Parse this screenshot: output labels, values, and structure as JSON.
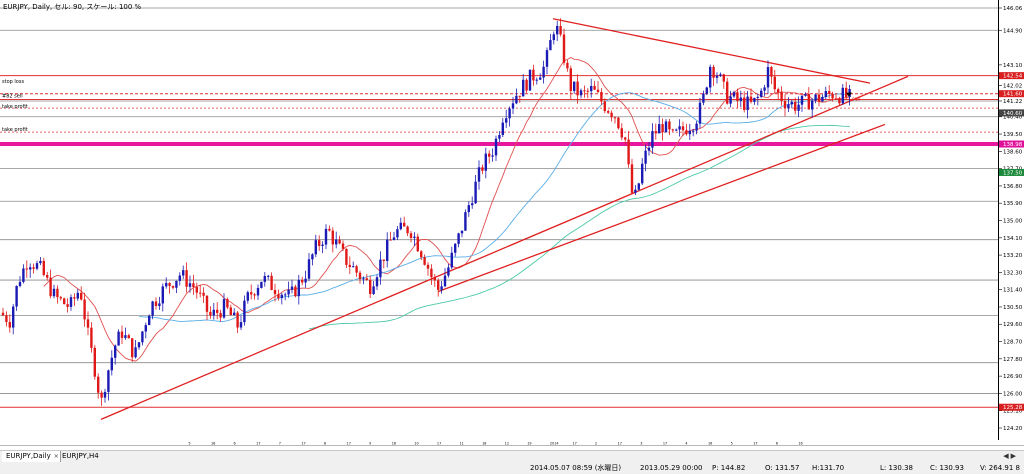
{
  "chart_title": "EURJPY, Daily, セル: 90, スケール: 100 %",
  "tabs": [
    {
      "label": "EURJPY,Daily",
      "close": "×"
    },
    {
      "label": "EURJPY,H4"
    }
  ],
  "nav_icons": [
    "arrow-left-icon",
    "arrow-right-icon"
  ],
  "status": {
    "datetime": "2014.05.07 08:59 (水曜日)",
    "bar_date": "2013.05.29 00:00",
    "p": "P: 144.82",
    "o": "O: 131.57",
    "h": "H:131.70",
    "l": "L: 130.38",
    "c": "C: 130.93",
    "v": "V: 264.91 8"
  },
  "chart_data": {
    "type": "candlestick",
    "symbol": "EURJPY",
    "timeframe": "Daily",
    "y_ticks": [
      "146.06",
      "144.90",
      "143.10",
      "142.02",
      "141.22",
      "140.40",
      "139.50",
      "138.60",
      "137.70",
      "136.80",
      "135.90",
      "135.00",
      "134.10",
      "133.20",
      "132.30",
      "131.40",
      "130.50",
      "129.60",
      "128.70",
      "127.80",
      "126.90",
      "126.00",
      "125.10",
      "124.20"
    ],
    "price_range": [
      124.2,
      146.2
    ],
    "time_ticks": [
      "5",
      "16",
      "6",
      "17",
      "7",
      "17",
      "8",
      "17",
      "9",
      "18",
      "10",
      "17",
      "11",
      "18",
      "12",
      "19",
      "2014",
      "17",
      "2",
      "17",
      "3",
      "17",
      "4",
      "16",
      "5",
      "17",
      "6",
      "16"
    ],
    "labels": [
      {
        "text": "stop loss",
        "price": 142.1
      },
      {
        "text": "#82 sell",
        "price": 141.35
      },
      {
        "text": "take profit",
        "price": 140.8
      },
      {
        "text": "take profit",
        "price": 139.6
      }
    ],
    "highlighted_prices": [
      {
        "text": "142.54",
        "price": 142.54,
        "color": "#d82020"
      },
      {
        "text": "141.60",
        "price": 141.6,
        "color": "#d82020"
      },
      {
        "text": "140.60",
        "price": 140.6,
        "color": "#444444"
      },
      {
        "text": "138.98",
        "price": 138.98,
        "color": "#e0109a"
      },
      {
        "text": "137.50",
        "price": 137.5,
        "color": "#1a8a3a"
      },
      {
        "text": "125.28",
        "price": 125.28,
        "color": "#d82020"
      }
    ],
    "sell_label": "sell",
    "key_points": [
      [
        0,
        130.2
      ],
      [
        10,
        129.8
      ],
      [
        18,
        131.8
      ],
      [
        28,
        133.0
      ],
      [
        40,
        132.5
      ],
      [
        55,
        131.0
      ],
      [
        70,
        130.5
      ],
      [
        80,
        131.5
      ],
      [
        88,
        129.0
      ],
      [
        96,
        127.0
      ],
      [
        101,
        125.4
      ],
      [
        106,
        126.8
      ],
      [
        115,
        128.5
      ],
      [
        122,
        129.2
      ],
      [
        135,
        128.0
      ],
      [
        150,
        130.5
      ],
      [
        165,
        131.5
      ],
      [
        180,
        132.2
      ],
      [
        195,
        131.5
      ],
      [
        210,
        130.0
      ],
      [
        225,
        130.5
      ],
      [
        238,
        129.5
      ],
      [
        248,
        131.0
      ],
      [
        262,
        132.0
      ],
      [
        275,
        131.5
      ],
      [
        290,
        131.0
      ],
      [
        305,
        132.2
      ],
      [
        315,
        133.5
      ],
      [
        328,
        134.5
      ],
      [
        345,
        133.0
      ],
      [
        362,
        132.0
      ],
      [
        370,
        131.6
      ],
      [
        382,
        133.0
      ],
      [
        395,
        134.4
      ],
      [
        410,
        134.6
      ],
      [
        425,
        133.0
      ],
      [
        432,
        132.0
      ],
      [
        438,
        131.4
      ],
      [
        448,
        132.5
      ],
      [
        458,
        134.0
      ],
      [
        470,
        136.0
      ],
      [
        482,
        137.8
      ],
      [
        494,
        138.8
      ],
      [
        503,
        140.5
      ],
      [
        515,
        141.5
      ],
      [
        530,
        142.4
      ],
      [
        545,
        143.0
      ],
      [
        555,
        145.3
      ],
      [
        562,
        144.0
      ],
      [
        570,
        142.0
      ],
      [
        582,
        141.5
      ],
      [
        592,
        141.8
      ],
      [
        605,
        141.0
      ],
      [
        615,
        140.5
      ],
      [
        625,
        139.3
      ],
      [
        631,
        136.5
      ],
      [
        636,
        136.2
      ],
      [
        642,
        137.8
      ],
      [
        652,
        139.4
      ],
      [
        662,
        140.0
      ],
      [
        672,
        139.3
      ],
      [
        685,
        139.8
      ],
      [
        695,
        140.2
      ],
      [
        702,
        141.0
      ],
      [
        710,
        143.1
      ],
      [
        718,
        142.6
      ],
      [
        726,
        141.5
      ],
      [
        738,
        141.2
      ],
      [
        752,
        141.0
      ],
      [
        760,
        141.5
      ],
      [
        768,
        142.8
      ],
      [
        775,
        141.8
      ],
      [
        785,
        141.2
      ],
      [
        795,
        141.0
      ],
      [
        808,
        141.2
      ],
      [
        820,
        141.4
      ],
      [
        832,
        141.6
      ],
      [
        842,
        141.5
      ],
      [
        850,
        141.4
      ]
    ]
  }
}
